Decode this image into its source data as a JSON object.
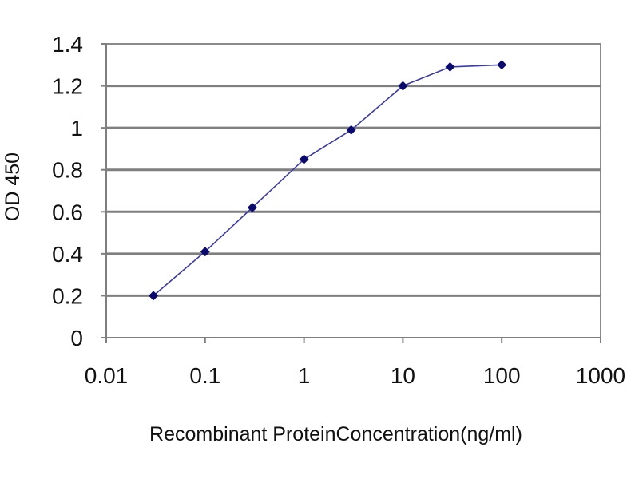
{
  "chart_data": {
    "type": "line",
    "title": "",
    "xlabel": "Recombinant ProteinConcentration(ng/ml)",
    "ylabel": "OD 450",
    "x_scale": "log",
    "xlim": [
      0.01,
      1000
    ],
    "ylim": [
      0,
      1.4
    ],
    "x_ticks": [
      0.01,
      0.1,
      1,
      10,
      100,
      1000
    ],
    "x_tick_labels": [
      "0.01",
      "0.1",
      "1",
      "10",
      "100",
      "1000"
    ],
    "y_ticks": [
      0,
      0.2,
      0.4,
      0.6,
      0.8,
      1,
      1.2,
      1.4
    ],
    "y_tick_labels": [
      "0",
      "0.2",
      "0.4",
      "0.6",
      "0.8",
      "1",
      "1.2",
      "1.4"
    ],
    "grid": true,
    "legend": "none",
    "colors": {
      "series": "#3a3aa8",
      "marker": "#0a0a6e",
      "grid": "#7f7f7f"
    },
    "series": [
      {
        "x": [
          0.03,
          0.1,
          0.3,
          1,
          3,
          10,
          30,
          100
        ],
        "y": [
          0.2,
          0.41,
          0.62,
          0.85,
          0.99,
          1.2,
          1.29,
          1.3
        ]
      }
    ]
  }
}
